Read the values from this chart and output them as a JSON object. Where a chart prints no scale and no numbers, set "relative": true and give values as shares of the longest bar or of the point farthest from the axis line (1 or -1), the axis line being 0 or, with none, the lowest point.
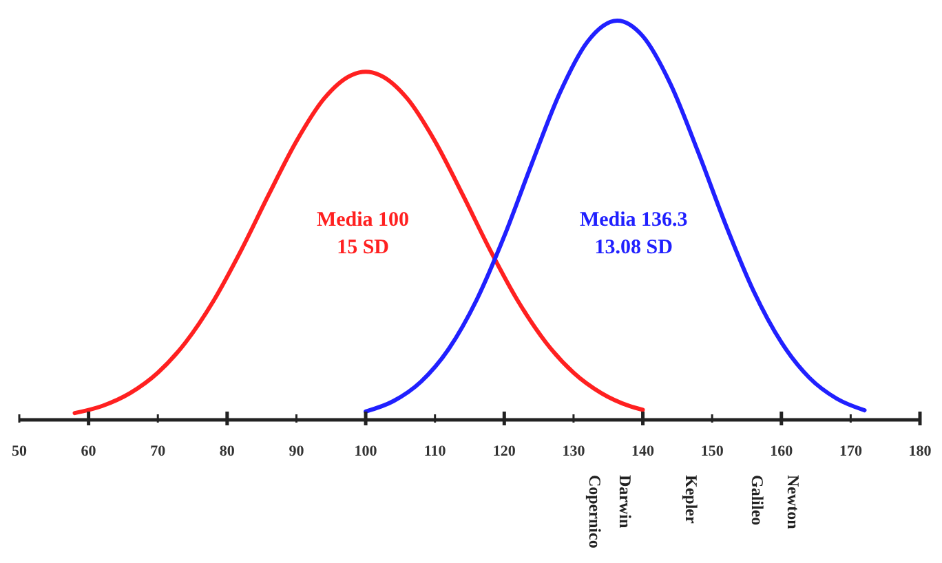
{
  "chart_data": {
    "type": "line",
    "relative": true,
    "xlim": [
      50,
      180
    ],
    "xticks": [
      50,
      60,
      70,
      80,
      90,
      100,
      110,
      120,
      130,
      140,
      150,
      160,
      170,
      180
    ],
    "line_style": "solid",
    "series": [
      {
        "color": "#ff2020",
        "x": [
          58,
          62,
          66,
          70,
          74,
          78,
          82,
          86,
          90,
          94,
          98,
          100,
          102,
          106,
          110,
          114,
          118,
          122,
          126,
          130,
          134,
          138,
          140
        ],
        "values": [
          0.017,
          0.035,
          0.067,
          0.118,
          0.194,
          0.297,
          0.424,
          0.564,
          0.698,
          0.805,
          0.864,
          0.872,
          0.864,
          0.805,
          0.698,
          0.564,
          0.424,
          0.297,
          0.194,
          0.118,
          0.067,
          0.035,
          0.025
        ]
      },
      {
        "color": "#2020ff",
        "x": [
          100,
          104,
          108,
          112,
          116,
          120,
          124,
          128,
          132,
          136.3,
          140,
          144,
          148,
          152,
          156,
          160,
          164,
          168,
          172
        ],
        "values": [
          0.021,
          0.047,
          0.096,
          0.178,
          0.3,
          0.46,
          0.643,
          0.818,
          0.947,
          1,
          0.961,
          0.841,
          0.67,
          0.487,
          0.322,
          0.194,
          0.106,
          0.053,
          0.024
        ]
      }
    ],
    "annotations": [
      "Media 100\n15 SD",
      "Media 136.3\n13.08 SD",
      "Copernico",
      "Darwin",
      "Kepler",
      "Galileo",
      "Newton"
    ]
  }
}
